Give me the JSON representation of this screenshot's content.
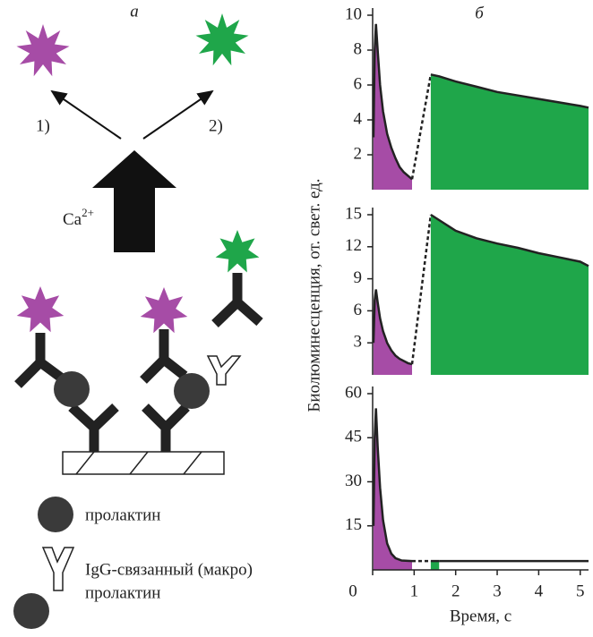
{
  "figure": {
    "label_a": "а",
    "label_b": "б",
    "arrow_1": "1)",
    "arrow_2": "2)",
    "ion": "Ca",
    "ion_charge": "2+",
    "legend": [
      {
        "label": "пролактин"
      },
      {
        "label": "IgG-связанный (макро)",
        "label2": "пролактин"
      }
    ]
  },
  "chart_data": [
    {
      "type": "line",
      "ylim": [
        0,
        10
      ],
      "yticks": [
        2,
        4,
        6,
        8,
        10
      ],
      "xlim": [
        0,
        5.2
      ],
      "series": [
        {
          "style": "area",
          "color": "#a64ca6",
          "x": [
            0.02,
            0.05,
            0.08,
            0.12,
            0.18,
            0.25,
            0.35,
            0.45,
            0.55,
            0.65,
            0.75,
            0.85,
            0.95
          ],
          "values": [
            3,
            8,
            9.5,
            8,
            6,
            4.5,
            3.2,
            2.4,
            1.8,
            1.3,
            1,
            0.8,
            0.6
          ]
        },
        {
          "style": "dashed",
          "color": "#222222",
          "x": [
            0.95,
            1.4
          ],
          "values": [
            0.6,
            6.6
          ]
        },
        {
          "style": "area",
          "color": "#1fa64a",
          "x": [
            1.4,
            1.6,
            2,
            2.5,
            3,
            3.5,
            4,
            4.5,
            5,
            5.2
          ],
          "values": [
            6.6,
            6.5,
            6.2,
            5.9,
            5.6,
            5.4,
            5.2,
            5.0,
            4.8,
            4.7
          ]
        }
      ]
    },
    {
      "type": "line",
      "ylim": [
        0,
        15
      ],
      "yticks": [
        3,
        6,
        9,
        12,
        15
      ],
      "xlim": [
        0,
        5.2
      ],
      "ylabel": "Биолюминесценция, от. свет. ед.",
      "series": [
        {
          "style": "area",
          "color": "#a64ca6",
          "x": [
            0.02,
            0.05,
            0.08,
            0.12,
            0.18,
            0.25,
            0.35,
            0.45,
            0.55,
            0.65,
            0.75,
            0.85,
            0.95
          ],
          "values": [
            3,
            7,
            8,
            6.8,
            5.3,
            4.1,
            3,
            2.3,
            1.8,
            1.5,
            1.3,
            1.1,
            1
          ]
        },
        {
          "style": "dashed",
          "color": "#222222",
          "x": [
            0.95,
            1.4
          ],
          "values": [
            1,
            15
          ]
        },
        {
          "style": "area",
          "color": "#1fa64a",
          "x": [
            1.4,
            1.6,
            2,
            2.5,
            3,
            3.5,
            4,
            4.5,
            5,
            5.2
          ],
          "values": [
            15,
            14.5,
            13.5,
            12.8,
            12.3,
            11.9,
            11.4,
            11,
            10.6,
            10.2
          ]
        }
      ]
    },
    {
      "type": "line",
      "ylim": [
        0,
        60
      ],
      "yticks": [
        15,
        30,
        45,
        60
      ],
      "xlim": [
        0,
        5.2
      ],
      "xticks": [
        0,
        1,
        2,
        3,
        4,
        5
      ],
      "xlabel": "Время, с",
      "series": [
        {
          "style": "area",
          "color": "#a64ca6",
          "x": [
            0.02,
            0.05,
            0.08,
            0.12,
            0.18,
            0.25,
            0.35,
            0.45,
            0.55,
            0.7,
            0.95
          ],
          "values": [
            15,
            45,
            55,
            42,
            28,
            17,
            9,
            5.5,
            4,
            3.2,
            3
          ]
        },
        {
          "style": "dashed",
          "color": "#222222",
          "x": [
            0.95,
            1.4
          ],
          "values": [
            3,
            3
          ]
        },
        {
          "style": "area",
          "color": "#1fa64a",
          "x": [
            1.4,
            1.6
          ],
          "values": [
            3,
            3
          ]
        },
        {
          "style": "line",
          "color": "#222222",
          "x": [
            1.6,
            2,
            3,
            4,
            5,
            5.2
          ],
          "values": [
            3,
            3,
            3,
            3,
            3,
            3
          ]
        }
      ]
    }
  ]
}
